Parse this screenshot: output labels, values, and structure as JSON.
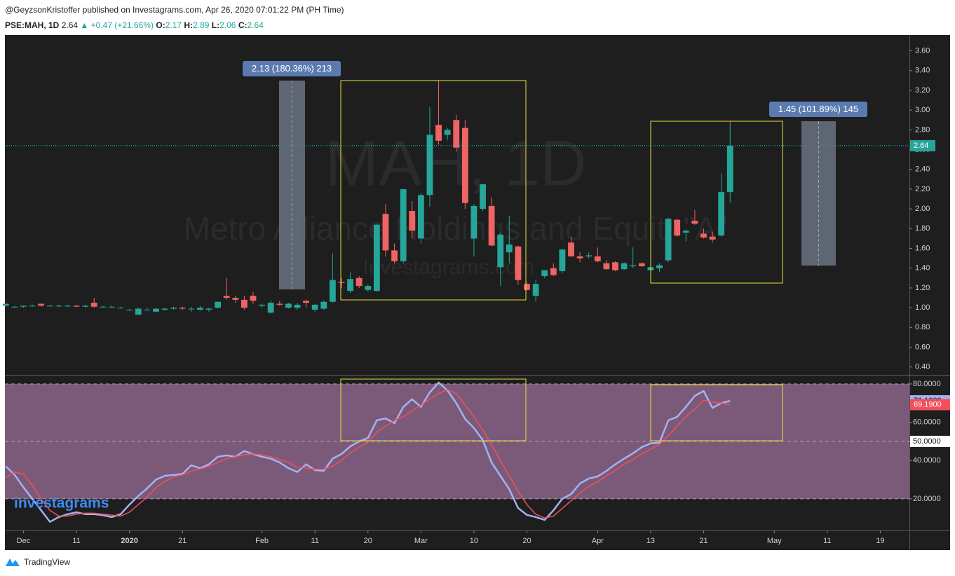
{
  "header": {
    "publisher": "@GeyzsonKristoffer published on Investagrams.com, Apr 26, 2020 07:01:22 PM (PH Time)",
    "symbol": "PSE:MAH, 1D",
    "arrow": "▲",
    "change": "+0.47 (+21.66%)",
    "o": "O:",
    "h": "H:",
    "l": "L:",
    "c": "C:"
  },
  "footer": {
    "brand": "TradingView"
  },
  "chart_data": [
    {
      "type": "candlestick",
      "watermark": {
        "symbol": "MAH, 1D",
        "name": "Metro Alliance Holdings and Equit. \"A\"",
        "site": "Investagrams.com"
      },
      "annotations": [
        "2.13 (180.36%) 213",
        "1.45 (101.89%) 145"
      ],
      "up_color": "#26a69a",
      "down_color": "#ef6464",
      "last_line_color": "#26c6da",
      "xlim": [
        -0.1,
        102.3
      ],
      "ylim": [
        0.32,
        3.76
      ],
      "yticks": [
        {
          "value": 0.4,
          "label": "0.40"
        },
        {
          "value": 0.6,
          "label": "0.60"
        },
        {
          "value": 0.8,
          "label": "0.80"
        },
        {
          "value": 1,
          "label": "1.00"
        },
        {
          "value": 1.2,
          "label": "1.20"
        },
        {
          "value": 1.4,
          "label": "1.40"
        },
        {
          "value": 1.6,
          "label": "1.60"
        },
        {
          "value": 1.8,
          "label": "1.80"
        },
        {
          "value": 2,
          "label": "2.00"
        },
        {
          "value": 2.2,
          "label": "2.20"
        },
        {
          "value": 2.4,
          "label": "2.40"
        },
        {
          "value": 2.6,
          "label": "2.60"
        },
        {
          "value": 2.8,
          "label": "2.80"
        },
        {
          "value": 3,
          "label": "3.00"
        },
        {
          "value": 3.2,
          "label": "3.20"
        },
        {
          "value": 3.4,
          "label": "3.40"
        },
        {
          "value": 3.6,
          "label": "3.60"
        }
      ],
      "x": [
        0,
        1,
        2,
        3,
        4,
        5,
        6,
        7,
        8,
        9,
        10,
        11,
        12,
        13,
        14,
        15,
        16,
        17,
        18,
        19,
        20,
        21,
        22,
        23,
        24,
        25,
        26,
        27,
        28,
        29,
        30,
        31,
        32,
        33,
        34,
        35,
        36,
        37,
        38,
        39,
        40,
        41,
        42,
        43,
        44,
        45,
        46,
        47,
        48,
        49,
        50,
        51,
        52,
        53,
        54,
        55,
        56,
        57,
        58,
        59,
        60,
        61,
        62,
        63,
        64,
        65,
        66,
        67,
        68,
        69,
        70,
        71,
        72,
        73,
        74,
        75,
        76,
        77,
        78,
        79,
        80,
        81,
        82
      ],
      "open": [
        1.02,
        1.01,
        1.01,
        1.02,
        1.04,
        1.02,
        1.02,
        1.02,
        1.02,
        1.01,
        1.05,
        1.01,
        1.01,
        1.0,
        0.98,
        0.93,
        0.98,
        0.96,
        0.98,
        0.99,
        1.0,
        0.99,
        0.98,
        0.98,
        1.0,
        1.12,
        1.1,
        1.08,
        1.12,
        1.02,
        0.95,
        1.04,
        1.0,
        1.0,
        1.07,
        0.98,
        0.99,
        1.06,
        1.26,
        1.17,
        1.3,
        1.18,
        1.17,
        1.95,
        1.58,
        1.47,
        1.98,
        1.7,
        2.14,
        2.85,
        2.75,
        2.9,
        2.82,
        1.7,
        2.0,
        2.03,
        1.41,
        1.56,
        1.62,
        1.24,
        1.12,
        1.32,
        1.4,
        1.37,
        1.66,
        1.52,
        1.52,
        1.52,
        1.45,
        1.46,
        1.39,
        1.42,
        1.45,
        1.38,
        1.4,
        1.48,
        1.89,
        1.76,
        1.88,
        1.75,
        1.72,
        1.73,
        2.17
      ],
      "high": [
        1.04,
        1.02,
        1.02,
        1.03,
        1.04,
        1.03,
        1.03,
        1.03,
        1.03,
        1.03,
        1.1,
        1.02,
        1.02,
        1.01,
        0.99,
        1.0,
        1.0,
        1.0,
        1.0,
        1.01,
        1.01,
        1.01,
        1.02,
        1.0,
        1.06,
        1.3,
        1.12,
        1.12,
        1.16,
        1.04,
        1.07,
        1.07,
        1.05,
        1.05,
        1.08,
        1.04,
        1.07,
        1.55,
        1.3,
        1.36,
        1.32,
        1.24,
        1.85,
        2.05,
        1.65,
        2.2,
        2.08,
        2.16,
        3.03,
        3.3,
        2.82,
        2.95,
        2.9,
        2.05,
        2.25,
        2.12,
        1.76,
        1.93,
        1.63,
        1.26,
        1.28,
        1.38,
        1.45,
        1.59,
        1.72,
        1.56,
        1.56,
        1.61,
        1.48,
        1.47,
        1.46,
        1.61,
        1.46,
        1.44,
        1.45,
        1.91,
        1.9,
        1.79,
        1.99,
        1.8,
        1.77,
        2.36,
        2.89
      ],
      "low": [
        1.01,
        1.0,
        1.0,
        1.01,
        1.01,
        1.01,
        1.01,
        1.01,
        1.01,
        1.0,
        1.0,
        1.0,
        1.0,
        0.99,
        0.97,
        0.93,
        0.97,
        0.95,
        0.97,
        0.98,
        0.98,
        0.96,
        0.97,
        0.96,
        0.99,
        1.08,
        1.05,
        0.98,
        1.04,
        1.0,
        0.94,
        1.02,
        0.99,
        0.98,
        1.0,
        0.96,
        0.98,
        1.05,
        1.2,
        1.15,
        1.2,
        1.16,
        1.16,
        1.52,
        1.45,
        1.45,
        1.7,
        1.65,
        2.02,
        2.65,
        2.7,
        2.58,
        2.0,
        1.52,
        1.98,
        1.62,
        1.22,
        1.45,
        1.23,
        1.17,
        1.06,
        1.3,
        1.32,
        1.35,
        1.52,
        1.46,
        1.5,
        1.46,
        1.38,
        1.37,
        1.38,
        1.4,
        1.41,
        1.37,
        1.36,
        1.46,
        1.72,
        1.67,
        1.84,
        1.7,
        1.66,
        1.72,
        2.06
      ],
      "close": [
        1.04,
        1.01,
        1.02,
        1.02,
        1.02,
        1.02,
        1.02,
        1.02,
        1.01,
        1.02,
        1.01,
        1.01,
        1.01,
        1.0,
        0.98,
        0.99,
        0.98,
        0.99,
        0.99,
        1.0,
        0.99,
        0.99,
        1.0,
        0.99,
        1.06,
        1.1,
        1.08,
        1.0,
        1.07,
        1.03,
        1.05,
        1.03,
        1.04,
        1.03,
        1.05,
        1.03,
        1.06,
        1.28,
        1.25,
        1.29,
        1.22,
        1.22,
        1.84,
        1.58,
        1.47,
        2.2,
        1.78,
        2.14,
        2.75,
        2.69,
        2.8,
        2.62,
        2.06,
        2.03,
        2.25,
        1.63,
        1.74,
        1.64,
        1.28,
        1.18,
        1.24,
        1.38,
        1.33,
        1.59,
        1.52,
        1.5,
        1.53,
        1.47,
        1.39,
        1.38,
        1.45,
        1.43,
        1.42,
        1.41,
        1.43,
        1.9,
        1.73,
        1.78,
        1.85,
        1.71,
        1.69,
        2.17,
        2.64
      ]
    },
    {
      "type": "line",
      "logo": "investagrams",
      "xlim": [
        -0.1,
        102.3
      ],
      "ylim": [
        3.5,
        84
      ],
      "xticks": [
        {
          "value": 2,
          "label": "Dec"
        },
        {
          "value": 8,
          "label": "11"
        },
        {
          "value": 14,
          "label": "2020"
        },
        {
          "value": 20,
          "label": "21"
        },
        {
          "value": 29,
          "label": "Feb"
        },
        {
          "value": 35,
          "label": "11"
        },
        {
          "value": 41,
          "label": "20"
        },
        {
          "value": 47,
          "label": "Mar"
        },
        {
          "value": 53,
          "label": "10"
        },
        {
          "value": 59,
          "label": "20"
        },
        {
          "value": 67,
          "label": "Apr"
        },
        {
          "value": 73,
          "label": "13"
        },
        {
          "value": 79,
          "label": "21"
        },
        {
          "value": 87,
          "label": "May"
        },
        {
          "value": 93,
          "label": "11"
        },
        {
          "value": 99,
          "label": "19"
        }
      ],
      "yticks": [
        {
          "value": 20,
          "label": "20.0000"
        },
        {
          "value": 40,
          "label": "40.0000"
        },
        {
          "value": 60,
          "label": "60.0000"
        },
        {
          "value": 80,
          "label": "80.0000"
        }
      ],
      "hlines": [
        80,
        {
          "value": 50,
          "label": "50.0000"
        },
        20
      ],
      "band_color": "#7b5a79",
      "series": [
        {
          "color": "#a7b0f2",
          "label": "71.1909",
          "values": [
            37,
            32.5,
            26,
            20,
            14,
            8,
            10.5,
            12,
            13,
            12,
            12,
            11.5,
            10.5,
            12,
            17,
            21.5,
            25.5,
            30,
            32,
            32.5,
            33,
            37.5,
            36,
            38,
            42,
            42.7,
            42,
            45,
            43.4,
            42,
            41,
            39,
            36,
            34,
            38,
            35,
            34.6,
            41,
            43.4,
            47.4,
            50,
            51.8,
            61,
            62,
            59.5,
            68,
            72,
            68,
            75.6,
            80.7,
            76.7,
            70,
            61.7,
            57,
            50.7,
            39,
            32,
            25,
            15.2,
            11.6,
            10.5,
            9,
            14,
            20,
            22.5,
            28,
            30.6,
            31.7,
            34.6,
            38,
            41,
            43.8,
            47,
            49,
            49.3,
            61,
            62.8,
            68,
            73.8,
            76.3,
            67.5,
            70,
            71.1909
          ]
        },
        {
          "color": "#f0505a",
          "label": "69.1900",
          "values": [
            31,
            34,
            33,
            27,
            20,
            14,
            11,
            11,
            12,
            12.5,
            12.5,
            12,
            11.5,
            11,
            13,
            17,
            21,
            26,
            29,
            31.5,
            32.5,
            34.5,
            35.5,
            37,
            39,
            41,
            42,
            43,
            43.5,
            43,
            42,
            40.5,
            39,
            36.5,
            36,
            35.5,
            35.5,
            37,
            40,
            44,
            47,
            49.5,
            55,
            58,
            61,
            63,
            66,
            69,
            72,
            75,
            77,
            75,
            69,
            63,
            56,
            48,
            40,
            32,
            24,
            17,
            12,
            10,
            11,
            15,
            19,
            23,
            26.5,
            29,
            32,
            35,
            38,
            40.5,
            43.5,
            46,
            48.5,
            53,
            58,
            63,
            67,
            71.5,
            70.5,
            70,
            69.19
          ]
        }
      ]
    }
  ]
}
